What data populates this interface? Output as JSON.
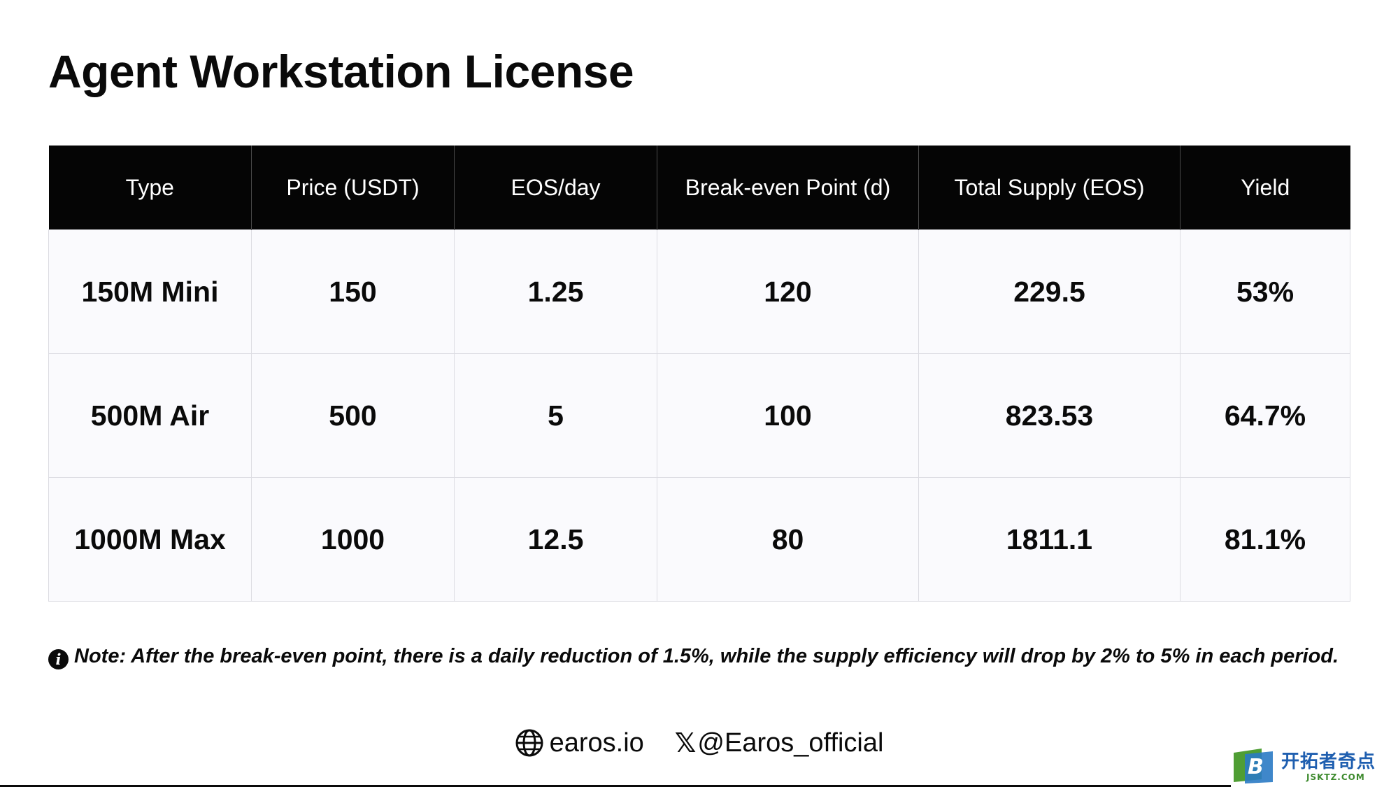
{
  "title": "Agent Workstation License",
  "table": {
    "headers": [
      "Type",
      "Price (USDT)",
      "EOS/day",
      "Break-even Point (d)",
      "Total Supply (EOS)",
      "Yield"
    ],
    "rows": [
      [
        "150M Mini",
        "150",
        "1.25",
        "120",
        "229.5",
        "53%"
      ],
      [
        "500M Air",
        "500",
        "5",
        "100",
        "823.53",
        "64.7%"
      ],
      [
        "1000M Max",
        "1000",
        "12.5",
        "80",
        "1811.1",
        "81.1%"
      ]
    ]
  },
  "note": {
    "icon": "info-icon",
    "icon_glyph": "i",
    "label": "Note:",
    "text": " After the break-even point, there is a daily reduction of 1.5%, while the supply efficiency will drop by 2% to 5% in each period."
  },
  "footer": {
    "website_icon": "globe-icon",
    "website": "earos.io",
    "social_icon": "x-icon",
    "social_icon_glyph": "𝕏",
    "handle": "@Earos_official"
  },
  "watermark": {
    "badge_letter": "B",
    "chinese": "开拓者奇点",
    "english": "JSKTZ.COM",
    "colors": {
      "blue": "#1f5fb0",
      "green": "#3d8a2d"
    }
  },
  "colors": {
    "header_bg": "#050505",
    "cell_bg": "#fafafd",
    "border": "#dcdce2",
    "text": "#0a0a0a"
  }
}
